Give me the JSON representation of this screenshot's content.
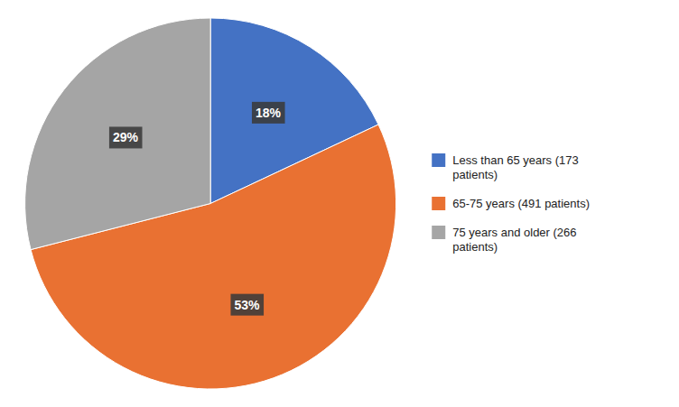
{
  "chart_data": {
    "type": "pie",
    "categories": [
      "Less than 65 years (173\npatients)",
      "65-75 years (491 patients)",
      "75 years and older (266\npatients)"
    ],
    "values": [
      18,
      53,
      29
    ],
    "value_labels": [
      "18%",
      "53%",
      "29%"
    ],
    "colors": [
      "#4472C4",
      "#E97132",
      "#A5A5A5"
    ],
    "data_labels": true,
    "legend": "right"
  }
}
